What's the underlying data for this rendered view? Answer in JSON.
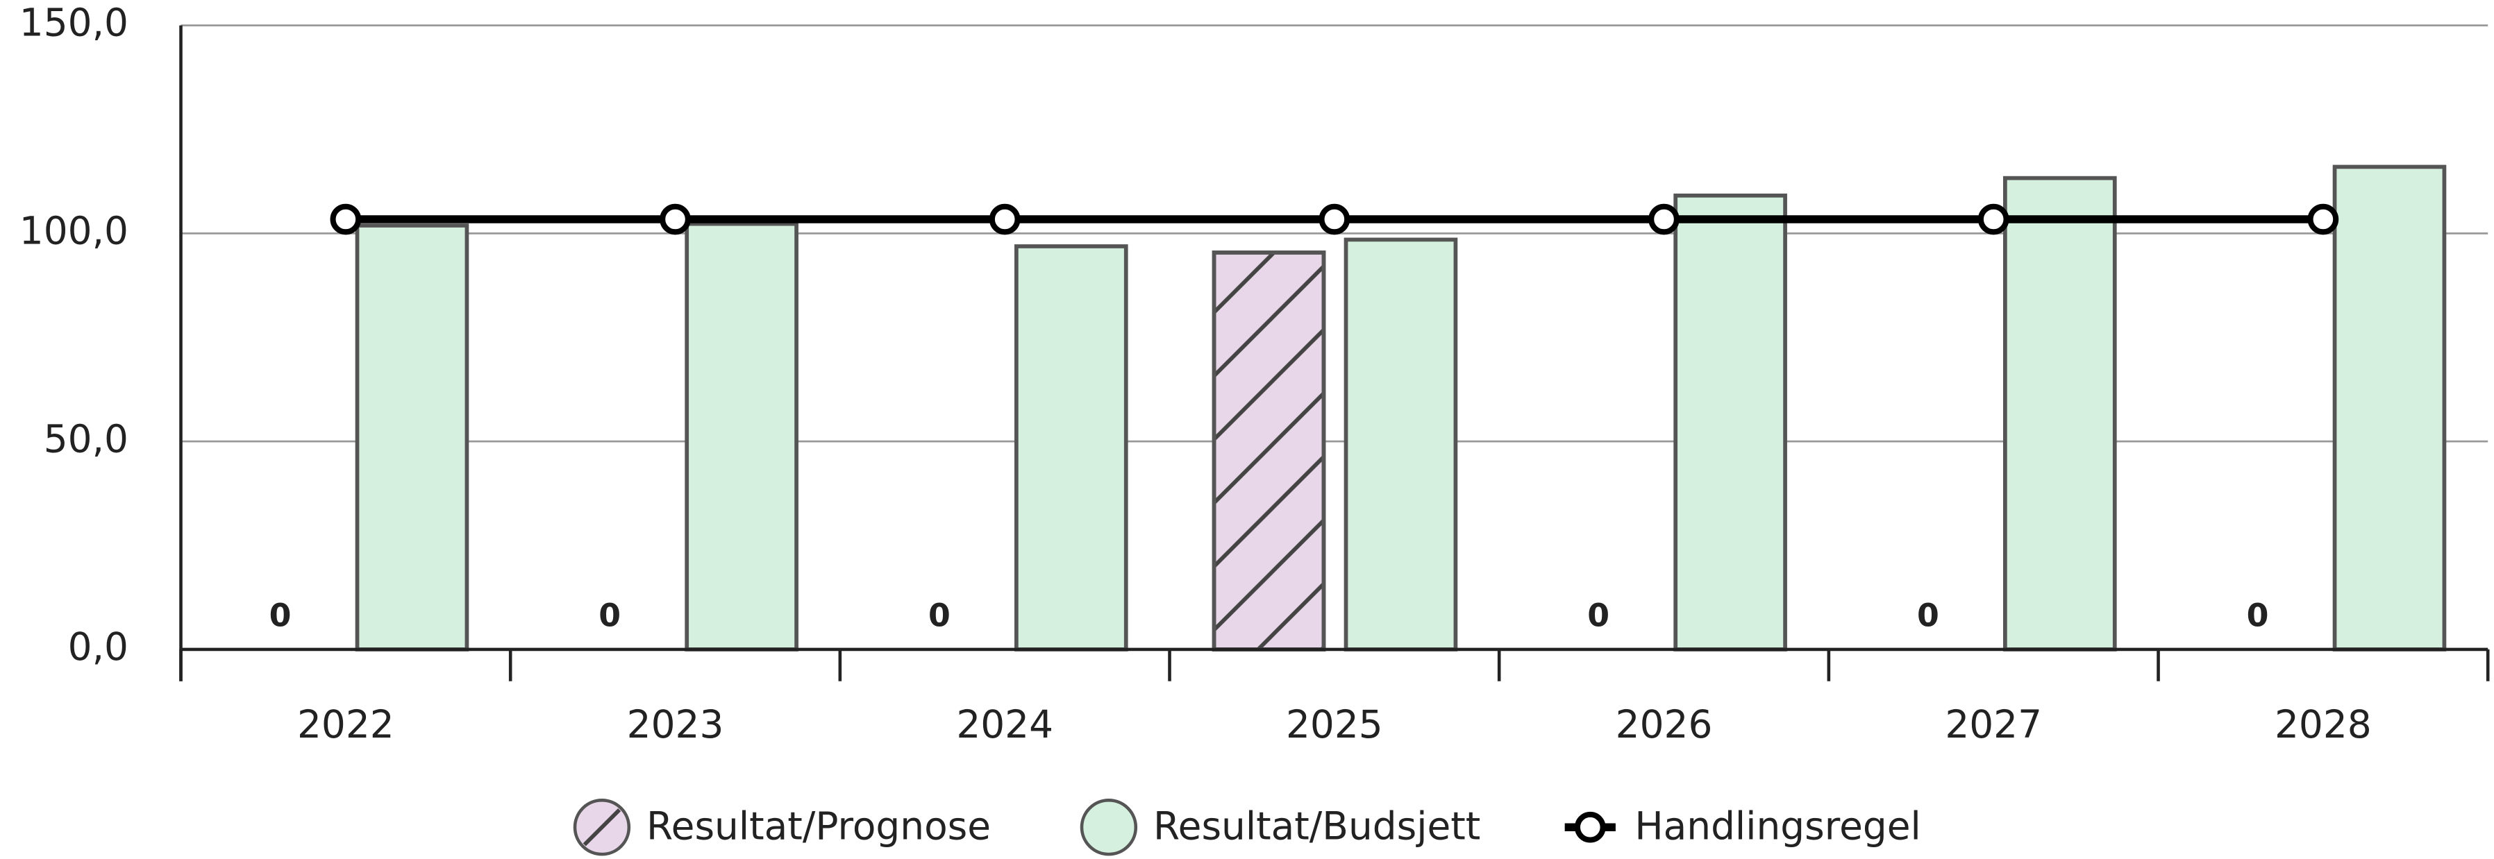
{
  "chart_data": {
    "type": "bar",
    "categories": [
      "2022",
      "2023",
      "2024",
      "2025",
      "2026",
      "2027",
      "2028"
    ],
    "series": [
      {
        "name": "Resultat/Prognose",
        "type": "bar",
        "color": "#e8d7e8",
        "pattern": "hatch",
        "values": [
          0,
          0,
          0,
          95.4,
          0,
          0,
          0
        ],
        "value_labels": [
          "0",
          "0",
          "0",
          null,
          "0",
          "0",
          "0"
        ]
      },
      {
        "name": "Resultat/Budsjett",
        "type": "bar",
        "color": "#d5f0de",
        "values": [
          101.9,
          102.3,
          96.9,
          98.5,
          109.1,
          113.3,
          116.0
        ]
      },
      {
        "name": "Handlingsregel",
        "type": "line",
        "color": "#000000",
        "values": [
          103.4,
          103.4,
          103.4,
          103.4,
          103.4,
          103.4,
          103.4
        ]
      }
    ],
    "ylim": [
      0,
      150
    ],
    "yticks": [
      {
        "value": 0,
        "label": "0,0"
      },
      {
        "value": 50,
        "label": "50,0"
      },
      {
        "value": 100,
        "label": "100,0"
      },
      {
        "value": 150,
        "label": "150,0"
      }
    ],
    "grid": true,
    "legend": "bottom"
  }
}
